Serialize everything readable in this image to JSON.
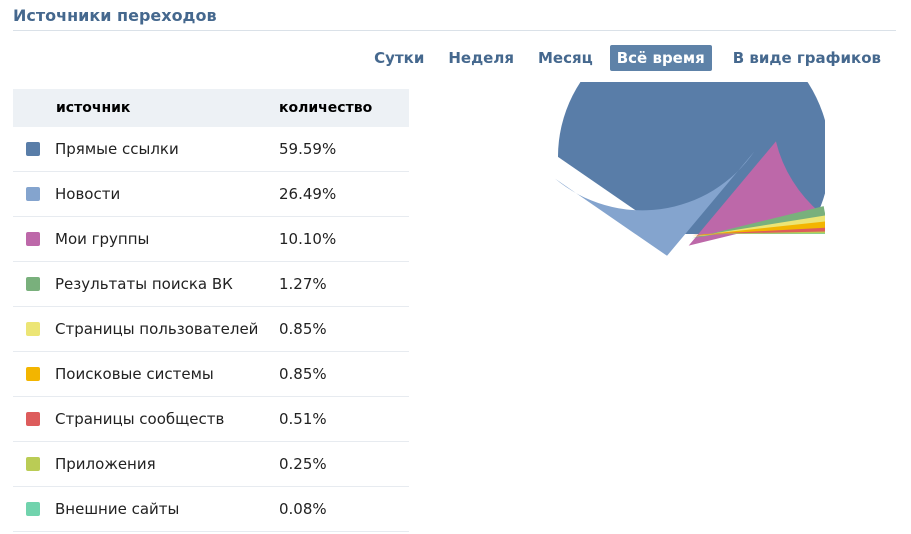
{
  "page": {
    "title": "Источники переходов"
  },
  "tabs": [
    {
      "label": "Сутки",
      "active": false
    },
    {
      "label": "Неделя",
      "active": false
    },
    {
      "label": "Месяц",
      "active": false
    },
    {
      "label": "Всё время",
      "active": true
    },
    {
      "label": "В виде графиков",
      "active": false
    }
  ],
  "table": {
    "headers": {
      "source": "источник",
      "count": "количество"
    },
    "rows": [
      {
        "name": "Прямые ссылки",
        "value": "59.59%",
        "color": "#597da8"
      },
      {
        "name": "Новости",
        "value": "26.49%",
        "color": "#84a4ce"
      },
      {
        "name": "Мои группы",
        "value": "10.10%",
        "color": "#bd68a9"
      },
      {
        "name": "Результаты поиска ВК",
        "value": "1.27%",
        "color": "#79b07c"
      },
      {
        "name": "Страницы пользователей",
        "value": "0.85%",
        "color": "#ece575"
      },
      {
        "name": "Поисковые системы",
        "value": "0.85%",
        "color": "#f3b500"
      },
      {
        "name": "Страницы сообществ",
        "value": "0.51%",
        "color": "#dd5c5c"
      },
      {
        "name": "Приложения",
        "value": "0.25%",
        "color": "#bacc55"
      },
      {
        "name": "Внешние сайты",
        "value": "0.08%",
        "color": "#71d3ad"
      }
    ]
  },
  "chart_data": {
    "type": "pie",
    "categories": [
      "Прямые ссылки",
      "Новости",
      "Мои группы",
      "Результаты поиска ВК",
      "Страницы пользователей",
      "Поисковые системы",
      "Страницы сообществ",
      "Приложения",
      "Внешние сайты"
    ],
    "values": [
      59.59,
      26.49,
      10.1,
      1.27,
      0.85,
      0.85,
      0.51,
      0.25,
      0.08
    ],
    "colors": [
      "#597da8",
      "#84a4ce",
      "#bd68a9",
      "#79b07c",
      "#ece575",
      "#f3b500",
      "#dd5c5c",
      "#bacc55",
      "#71d3ad"
    ],
    "exploded": true
  }
}
